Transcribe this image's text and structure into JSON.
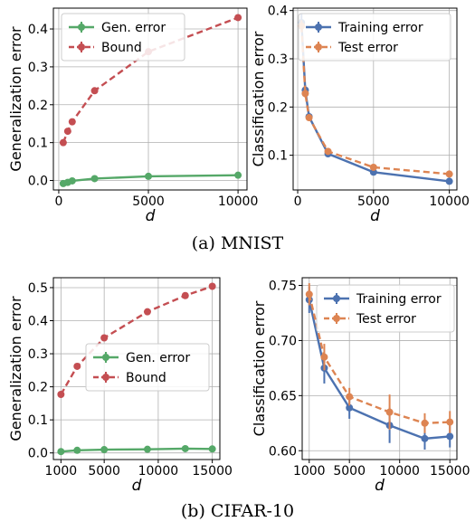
{
  "captions": {
    "top": "(a) MNIST",
    "bottom": "(b) CIFAR-10"
  },
  "chart_data": [
    {
      "id": "mnist_gen",
      "type": "line",
      "xlabel": "d",
      "ylabel": "Generalization error",
      "xlim": [
        -300,
        10500
      ],
      "ylim": [
        -0.025,
        0.455
      ],
      "xticks": [
        0,
        5000,
        10000
      ],
      "yticks": [
        0.0,
        0.1,
        0.2,
        0.3,
        0.4
      ],
      "ytick_labels": [
        "0.0",
        "0.1",
        "0.2",
        "0.3",
        "0.4"
      ],
      "grid": true,
      "legend": "top-left",
      "series": [
        {
          "name": "Gen. error",
          "color": "#55a868",
          "style": "solid",
          "x": [
            250,
            500,
            750,
            2000,
            5000,
            10000
          ],
          "y": [
            -0.008,
            -0.005,
            -0.001,
            0.005,
            0.011,
            0.014
          ],
          "err": [
            0.004,
            0.003,
            0.003,
            0.003,
            0.003,
            0.003
          ]
        },
        {
          "name": "Bound",
          "color": "#c44e52",
          "style": "dashed",
          "x": [
            250,
            500,
            750,
            2000,
            5000,
            10000
          ],
          "y": [
            0.1,
            0.13,
            0.155,
            0.237,
            0.34,
            0.43
          ],
          "err": [
            0.004,
            0.004,
            0.004,
            0.004,
            0.004,
            0.004
          ]
        }
      ]
    },
    {
      "id": "mnist_cls",
      "type": "line",
      "xlabel": "d",
      "ylabel": "Classification error",
      "xlim": [
        -300,
        10500
      ],
      "ylim": [
        0.028,
        0.405
      ],
      "xticks": [
        0,
        5000,
        10000
      ],
      "yticks": [
        0.1,
        0.2,
        0.3,
        0.4
      ],
      "ytick_labels": [
        "0.1",
        "0.2",
        "0.3",
        "0.4"
      ],
      "grid": true,
      "legend": "top-right",
      "series": [
        {
          "name": "Training error",
          "color": "#4c72b0",
          "style": "solid",
          "x": [
            250,
            500,
            750,
            2000,
            5000,
            10000
          ],
          "y": [
            0.375,
            0.235,
            0.18,
            0.103,
            0.065,
            0.046
          ],
          "err": [
            0.018,
            0.01,
            0.008,
            0.006,
            0.004,
            0.004
          ]
        },
        {
          "name": "Test error",
          "color": "#dd8452",
          "style": "dashed",
          "x": [
            250,
            500,
            750,
            2000,
            5000,
            10000
          ],
          "y": [
            0.368,
            0.228,
            0.178,
            0.108,
            0.075,
            0.061
          ],
          "err": [
            0.012,
            0.008,
            0.006,
            0.004,
            0.003,
            0.003
          ]
        }
      ]
    },
    {
      "id": "cifar_gen",
      "type": "line",
      "xlabel": "d",
      "ylabel": "Generalization error",
      "xlim": [
        300,
        15700
      ],
      "ylim": [
        -0.02,
        0.53
      ],
      "xticks": [
        1000,
        5000,
        10000,
        15000
      ],
      "yticks": [
        0.0,
        0.1,
        0.2,
        0.3,
        0.4,
        0.5
      ],
      "ytick_labels": [
        "0.0",
        "0.1",
        "0.2",
        "0.3",
        "0.4",
        "0.5"
      ],
      "grid": true,
      "legend": "center-right",
      "series": [
        {
          "name": "Gen. error",
          "color": "#55a868",
          "style": "solid",
          "x": [
            1000,
            2500,
            5000,
            9000,
            12500,
            15000
          ],
          "y": [
            0.004,
            0.008,
            0.01,
            0.011,
            0.013,
            0.012
          ],
          "err": [
            0.003,
            0.003,
            0.003,
            0.003,
            0.003,
            0.003
          ]
        },
        {
          "name": "Bound",
          "color": "#c44e52",
          "style": "dashed",
          "x": [
            1000,
            2500,
            5000,
            9000,
            12500,
            15000
          ],
          "y": [
            0.177,
            0.262,
            0.348,
            0.427,
            0.476,
            0.504
          ],
          "err": [
            0.004,
            0.004,
            0.004,
            0.004,
            0.004,
            0.004
          ]
        }
      ]
    },
    {
      "id": "cifar_cls",
      "type": "line",
      "xlabel": "d",
      "ylabel": "Classification error",
      "xlim": [
        300,
        15700
      ],
      "ylim": [
        0.592,
        0.757
      ],
      "xticks": [
        1000,
        5000,
        10000,
        15000
      ],
      "yticks": [
        0.6,
        0.65,
        0.7,
        0.75
      ],
      "ytick_labels": [
        "0.60",
        "0.65",
        "0.70",
        "0.75"
      ],
      "grid": true,
      "legend": "top-right",
      "series": [
        {
          "name": "Training error",
          "color": "#4c72b0",
          "style": "solid",
          "x": [
            1000,
            2500,
            5000,
            9000,
            12500,
            15000
          ],
          "y": [
            0.737,
            0.675,
            0.639,
            0.623,
            0.611,
            0.613
          ],
          "err": [
            0.012,
            0.014,
            0.01,
            0.016,
            0.01,
            0.01
          ]
        },
        {
          "name": "Test error",
          "color": "#dd8452",
          "style": "dashed",
          "x": [
            1000,
            2500,
            5000,
            9000,
            12500,
            15000
          ],
          "y": [
            0.742,
            0.685,
            0.649,
            0.635,
            0.625,
            0.626
          ],
          "err": [
            0.01,
            0.012,
            0.008,
            0.016,
            0.009,
            0.01
          ]
        }
      ]
    }
  ]
}
